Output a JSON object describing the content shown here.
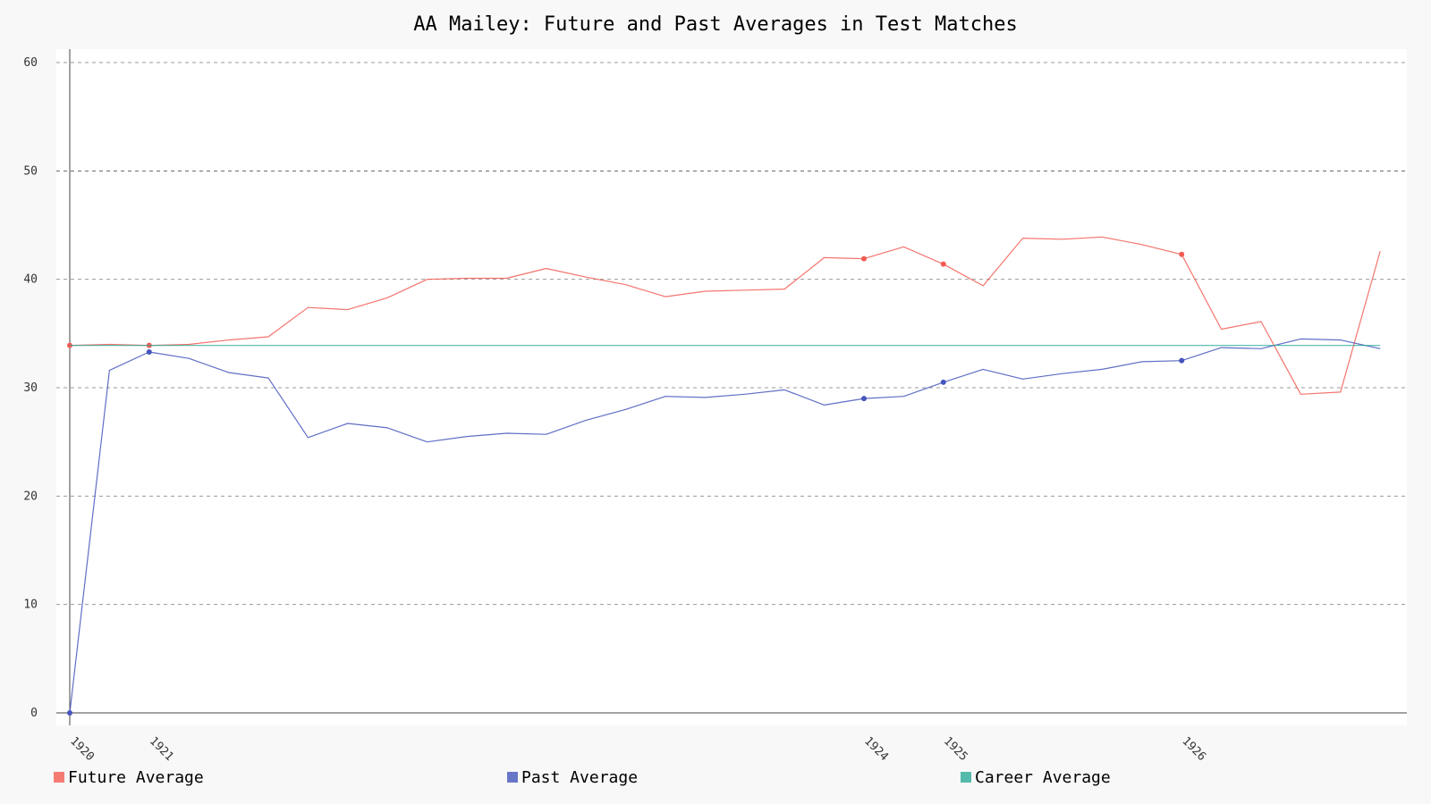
{
  "chart_data": {
    "type": "line",
    "title": "AA Mailey: Future and Past Averages in Test Matches",
    "xlabel": "",
    "ylabel": "",
    "ylim": [
      0,
      60
    ],
    "y_ticks": [
      0,
      10,
      20,
      30,
      40,
      50,
      60
    ],
    "grid": true,
    "legend_position": "bottom",
    "x": [
      0,
      1,
      2,
      3,
      4,
      5,
      6,
      7,
      8,
      9,
      10,
      11,
      12,
      13,
      14,
      15,
      16,
      17,
      18,
      19,
      20,
      21,
      22,
      23,
      24,
      25,
      26,
      27,
      28,
      29,
      30,
      31,
      32,
      33,
      34
    ],
    "x_tick_labels": [
      {
        "x": 0,
        "label": "1920"
      },
      {
        "x": 2,
        "label": "1921"
      },
      {
        "x": 20,
        "label": "1924"
      },
      {
        "x": 22,
        "label": "1925"
      },
      {
        "x": 28,
        "label": "1926"
      }
    ],
    "series": [
      {
        "name": "Future Average",
        "color": "#f25c54",
        "marker_indices": [
          0,
          2,
          20,
          22,
          28
        ],
        "values": [
          33.9,
          34.0,
          33.9,
          34.0,
          34.4,
          34.7,
          37.4,
          37.2,
          38.3,
          40.0,
          40.1,
          40.1,
          41.0,
          40.2,
          39.5,
          38.4,
          38.9,
          39.0,
          39.1,
          42.0,
          41.9,
          43.0,
          41.4,
          39.4,
          43.8,
          43.7,
          43.9,
          43.2,
          42.3,
          35.4,
          36.1,
          29.4,
          29.6,
          42.6,
          null
        ]
      },
      {
        "name": "Past Average",
        "color": "#4455bb",
        "marker_indices": [
          0,
          2,
          20,
          22,
          28
        ],
        "values": [
          0.0,
          31.6,
          33.3,
          32.7,
          31.4,
          30.9,
          25.4,
          26.7,
          26.3,
          25.0,
          25.5,
          25.8,
          25.7,
          27.0,
          28.0,
          29.2,
          29.1,
          29.4,
          29.8,
          28.4,
          29.0,
          29.2,
          30.5,
          31.7,
          30.8,
          31.3,
          31.7,
          32.4,
          32.5,
          33.7,
          33.6,
          34.5,
          34.4,
          33.6,
          null
        ]
      },
      {
        "name": "Career Average",
        "color": "#2aaa99",
        "marker_indices": [],
        "values": [
          33.9,
          33.9,
          33.9,
          33.9,
          33.9,
          33.9,
          33.9,
          33.9,
          33.9,
          33.9,
          33.9,
          33.9,
          33.9,
          33.9,
          33.9,
          33.9,
          33.9,
          33.9,
          33.9,
          33.9,
          33.9,
          33.9,
          33.9,
          33.9,
          33.9,
          33.9,
          33.9,
          33.9,
          33.9,
          33.9,
          33.9,
          33.9,
          33.9,
          33.9,
          null
        ]
      }
    ]
  }
}
